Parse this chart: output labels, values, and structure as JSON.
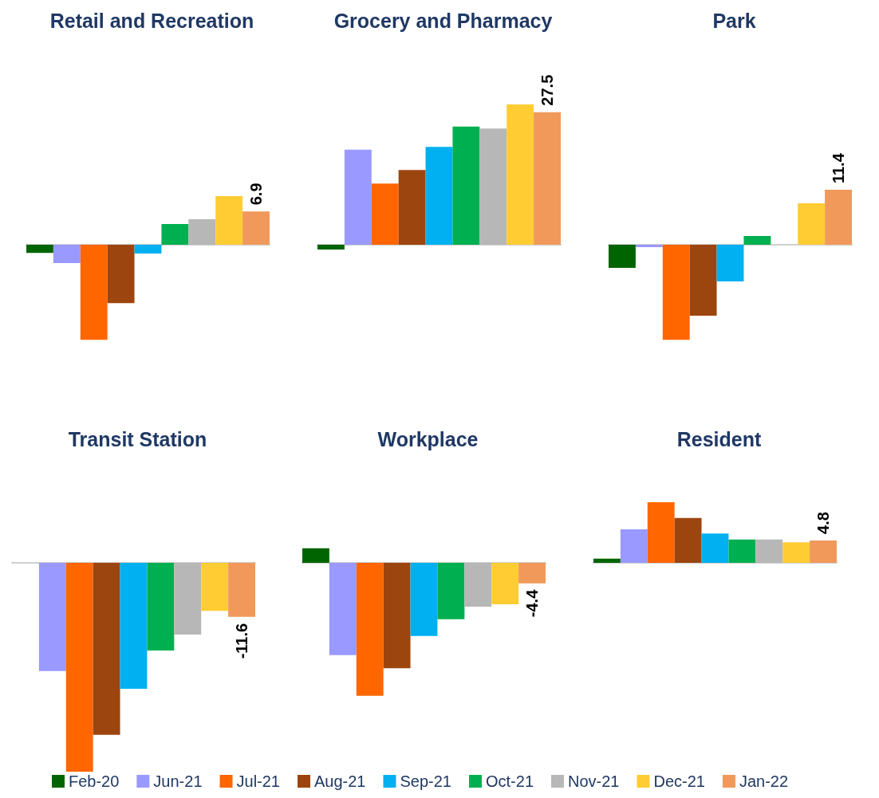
{
  "chart_data": [
    {
      "type": "bar",
      "title": "Retail and Recreation",
      "categories": [
        null
      ],
      "legend": "bottom",
      "series": [
        {
          "name": "Feb-20",
          "color": "#006400",
          "values": [
            -1.7
          ]
        },
        {
          "name": "Jun-21",
          "color": "#9999ff",
          "values": [
            -3.8
          ]
        },
        {
          "name": "Jul-21",
          "color": "#ff6600",
          "values": [
            -19.7
          ]
        },
        {
          "name": "Aug-21",
          "color": "#9c450e",
          "values": [
            -12.1
          ]
        },
        {
          "name": "Sep-21",
          "color": "#00b0f0",
          "values": [
            -1.8
          ]
        },
        {
          "name": "Oct-21",
          "color": "#00b050",
          "values": [
            4.3
          ]
        },
        {
          "name": "Nov-21",
          "color": "#b7b7b7",
          "values": [
            5.3
          ]
        },
        {
          "name": "Dec-21",
          "color": "#ffcc33",
          "values": [
            10.1
          ]
        },
        {
          "name": "Jan-22",
          "color": "#f0995b",
          "values": [
            6.9
          ],
          "value_labels": [
            "6.9"
          ]
        }
      ]
    },
    {
      "type": "bar",
      "title": "Grocery and Pharmacy",
      "categories": [
        null
      ],
      "legend": "bottom",
      "series": [
        {
          "name": "Feb-20",
          "color": "#006400",
          "values": [
            -1.0
          ]
        },
        {
          "name": "Jun-21",
          "color": "#9999ff",
          "values": [
            19.7
          ]
        },
        {
          "name": "Jul-21",
          "color": "#ff6600",
          "values": [
            12.7
          ]
        },
        {
          "name": "Aug-21",
          "color": "#9c450e",
          "values": [
            15.5
          ]
        },
        {
          "name": "Sep-21",
          "color": "#00b0f0",
          "values": [
            20.3
          ]
        },
        {
          "name": "Oct-21",
          "color": "#00b050",
          "values": [
            24.5
          ]
        },
        {
          "name": "Nov-21",
          "color": "#b7b7b7",
          "values": [
            24.1
          ]
        },
        {
          "name": "Dec-21",
          "color": "#ffcc33",
          "values": [
            29.1
          ]
        },
        {
          "name": "Jan-22",
          "color": "#f0995b",
          "values": [
            27.5
          ],
          "value_labels": [
            "27.5"
          ]
        }
      ]
    },
    {
      "type": "bar",
      "title": "Park",
      "categories": [
        null
      ],
      "legend": "bottom",
      "series": [
        {
          "name": "Feb-20",
          "color": "#006400",
          "values": [
            -4.8
          ]
        },
        {
          "name": "Jun-21",
          "color": "#9999ff",
          "values": [
            -0.5
          ]
        },
        {
          "name": "Jul-21",
          "color": "#ff6600",
          "values": [
            -19.7
          ]
        },
        {
          "name": "Aug-21",
          "color": "#9c450e",
          "values": [
            -14.7
          ]
        },
        {
          "name": "Sep-21",
          "color": "#00b0f0",
          "values": [
            -7.6
          ]
        },
        {
          "name": "Oct-21",
          "color": "#00b050",
          "values": [
            1.8
          ]
        },
        {
          "name": "Nov-21",
          "color": "#b7b7b7",
          "values": [
            null
          ]
        },
        {
          "name": "Dec-21",
          "color": "#ffcc33",
          "values": [
            8.6
          ]
        },
        {
          "name": "Jan-22",
          "color": "#f0995b",
          "values": [
            11.4
          ],
          "value_labels": [
            "11.4"
          ]
        }
      ]
    },
    {
      "type": "bar",
      "title": "Transit Station",
      "categories": [
        null
      ],
      "legend": "bottom",
      "series": [
        {
          "name": "Feb-20",
          "color": "#006400",
          "values": [
            null
          ]
        },
        {
          "name": "Jun-21",
          "color": "#9999ff",
          "values": [
            -23.2
          ]
        },
        {
          "name": "Jul-21",
          "color": "#ff6600",
          "values": [
            -44.8
          ]
        },
        {
          "name": "Aug-21",
          "color": "#9c450e",
          "values": [
            -36.9
          ]
        },
        {
          "name": "Sep-21",
          "color": "#00b0f0",
          "values": [
            -27.0
          ]
        },
        {
          "name": "Oct-21",
          "color": "#00b050",
          "values": [
            -18.8
          ]
        },
        {
          "name": "Nov-21",
          "color": "#b7b7b7",
          "values": [
            -15.4
          ]
        },
        {
          "name": "Dec-21",
          "color": "#ffcc33",
          "values": [
            -10.3
          ]
        },
        {
          "name": "Jan-22",
          "color": "#f0995b",
          "values": [
            -11.6
          ],
          "value_labels": [
            "-11.6"
          ]
        }
      ]
    },
    {
      "type": "bar",
      "title": "Workplace",
      "categories": [
        null
      ],
      "legend": "bottom",
      "series": [
        {
          "name": "Feb-20",
          "color": "#006400",
          "values": [
            3.1
          ]
        },
        {
          "name": "Jun-21",
          "color": "#9999ff",
          "values": [
            -19.8
          ]
        },
        {
          "name": "Jul-21",
          "color": "#ff6600",
          "values": [
            -28.5
          ]
        },
        {
          "name": "Aug-21",
          "color": "#9c450e",
          "values": [
            -22.6
          ]
        },
        {
          "name": "Sep-21",
          "color": "#00b0f0",
          "values": [
            -15.7
          ]
        },
        {
          "name": "Oct-21",
          "color": "#00b050",
          "values": [
            -12.1
          ]
        },
        {
          "name": "Nov-21",
          "color": "#b7b7b7",
          "values": [
            -9.4
          ]
        },
        {
          "name": "Dec-21",
          "color": "#ffcc33",
          "values": [
            -8.9
          ]
        },
        {
          "name": "Jan-22",
          "color": "#f0995b",
          "values": [
            -4.4
          ],
          "value_labels": [
            "-4.4"
          ]
        }
      ]
    },
    {
      "type": "bar",
      "title": "Resident",
      "categories": [
        null
      ],
      "legend": "bottom",
      "series": [
        {
          "name": "Feb-20",
          "color": "#006400",
          "values": [
            0.9
          ]
        },
        {
          "name": "Jun-21",
          "color": "#9999ff",
          "values": [
            7.2
          ]
        },
        {
          "name": "Jul-21",
          "color": "#ff6600",
          "values": [
            13.0
          ]
        },
        {
          "name": "Aug-21",
          "color": "#9c450e",
          "values": [
            9.6
          ]
        },
        {
          "name": "Sep-21",
          "color": "#00b0f0",
          "values": [
            6.3
          ]
        },
        {
          "name": "Oct-21",
          "color": "#00b050",
          "values": [
            5.0
          ]
        },
        {
          "name": "Nov-21",
          "color": "#b7b7b7",
          "values": [
            5.0
          ]
        },
        {
          "name": "Dec-21",
          "color": "#ffcc33",
          "values": [
            4.4
          ]
        },
        {
          "name": "Jan-22",
          "color": "#f0995b",
          "values": [
            4.8
          ],
          "value_labels": [
            "4.8"
          ]
        }
      ]
    }
  ]
}
